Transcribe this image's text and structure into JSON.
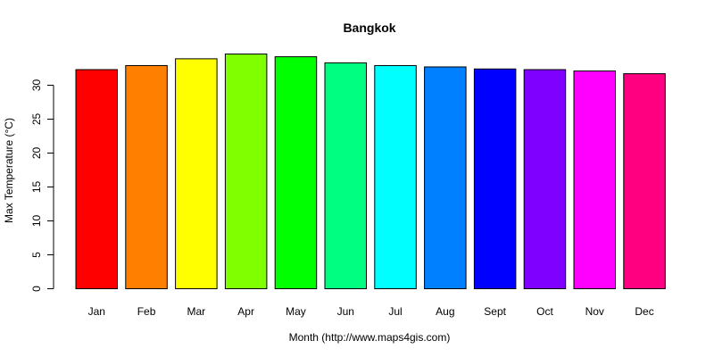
{
  "chart_data": {
    "type": "bar",
    "title": "Bangkok",
    "xlabel": "Month (http://www.maps4gis.com)",
    "ylabel": "Max Temperature (°C)",
    "categories": [
      "Jan",
      "Feb",
      "Mar",
      "Apr",
      "May",
      "Jun",
      "Jul",
      "Aug",
      "Sept",
      "Oct",
      "Nov",
      "Dec"
    ],
    "values": [
      32.3,
      32.9,
      33.9,
      34.6,
      34.2,
      33.3,
      32.9,
      32.7,
      32.4,
      32.3,
      32.1,
      31.7
    ],
    "colors": [
      "#FF0000",
      "#FF8000",
      "#FFFF00",
      "#80FF00",
      "#00FF00",
      "#00FF80",
      "#00FFFF",
      "#0080FF",
      "#0000FF",
      "#8000FF",
      "#FF00FF",
      "#FF0080"
    ],
    "yticks": [
      0,
      5,
      10,
      15,
      20,
      25,
      30
    ],
    "ylim": [
      0,
      35
    ],
    "grid": false,
    "legend": "none"
  }
}
